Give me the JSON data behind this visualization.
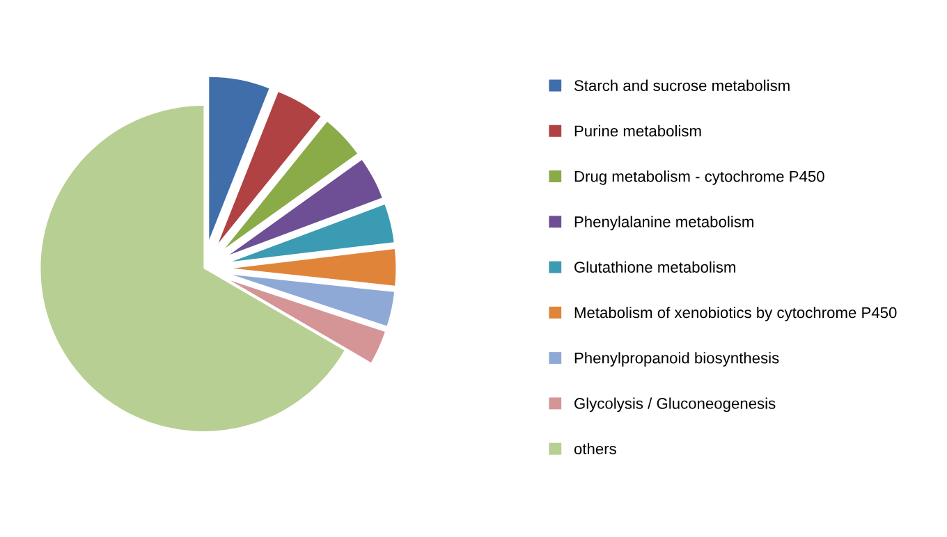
{
  "chart_data": {
    "type": "pie",
    "categories": [
      "Starch and sucrose metabolism",
      "Purine metabolism",
      "Drug metabolism - cytochrome P450",
      "Phenylalanine metabolism",
      "Glutathione metabolism",
      "Metabolism of xenobiotics by cytochrome P450",
      "Phenylpropanoid biosynthesis",
      "Glycolysis / Gluconeogenesis",
      "others"
    ],
    "values": [
      6,
      4.8,
      4.3,
      4.2,
      3.8,
      3.6,
      3.4,
      3.3,
      66.6
    ],
    "colors": [
      "#3f6eaa",
      "#b04243",
      "#8aab48",
      "#6e4f95",
      "#3b9bb2",
      "#e0843a",
      "#8fa9d6",
      "#d59597",
      "#b7cf92"
    ],
    "legend": "right"
  }
}
